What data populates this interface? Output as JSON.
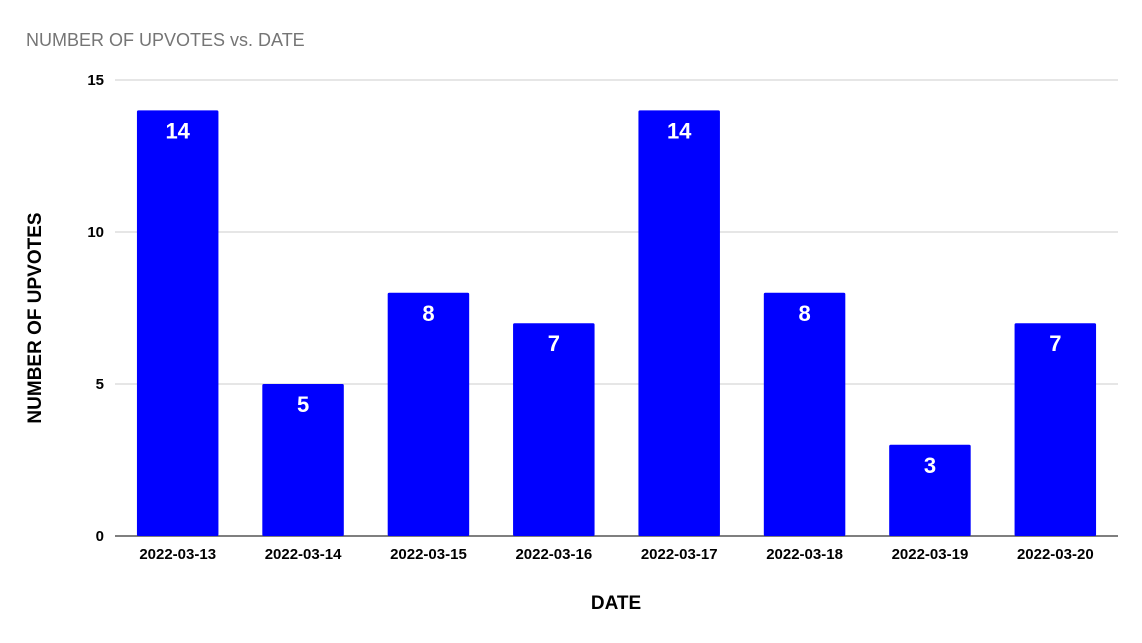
{
  "chart_data": {
    "type": "bar",
    "title": "NUMBER OF UPVOTES vs. DATE",
    "xlabel": "DATE",
    "ylabel": "NUMBER OF UPVOTES",
    "categories": [
      "2022-03-13",
      "2022-03-14",
      "2022-03-15",
      "2022-03-16",
      "2022-03-17",
      "2022-03-18",
      "2022-03-19",
      "2022-03-20"
    ],
    "values": [
      14,
      5,
      8,
      7,
      14,
      8,
      3,
      7
    ],
    "ylim": [
      0,
      15
    ],
    "yticks": [
      0,
      5,
      10,
      15
    ],
    "grid": true,
    "legend": "none",
    "data_labels": true,
    "colors": {
      "bar": "#0000ff",
      "data_label": "#ffffff",
      "gridline": "#cccccc",
      "title": "#757575"
    }
  }
}
